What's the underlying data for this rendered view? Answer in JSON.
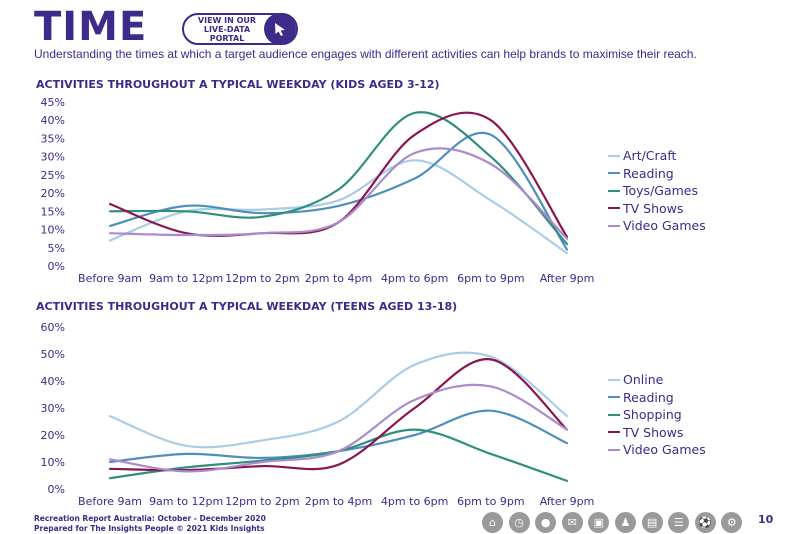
{
  "header": {
    "title": "TIME",
    "portal_button": "VIEW IN OUR LIVE-DATA PORTAL",
    "portal_line1": "VIEW IN OUR",
    "portal_line2": "LIVE-DATA PORTAL",
    "subtitle": "Understanding the times at which a target audience engages with different activities can help brands to maximise their reach."
  },
  "chart_data": [
    {
      "type": "line",
      "title": "ACTIVITIES THROUGHOUT A TYPICAL WEEKDAY (KIDS AGED 3-12)",
      "categories": [
        "Before 9am",
        "9am to 12pm",
        "12pm to 2pm",
        "2pm to 4pm",
        "4pm to 6pm",
        "6pm to 9pm",
        "After 9pm"
      ],
      "y_ticks": [
        "0%",
        "5%",
        "10%",
        "15%",
        "20%",
        "25%",
        "30%",
        "35%",
        "40%",
        "45%"
      ],
      "ylim": [
        0,
        45
      ],
      "grid": false,
      "legend_position": "right",
      "series": [
        {
          "name": "Art/Craft",
          "color": "#a9cde6",
          "values": [
            7,
            15,
            15.5,
            18,
            29,
            18,
            3.5
          ]
        },
        {
          "name": "Reading",
          "color": "#4f8fbd",
          "values": [
            11,
            16.5,
            14.5,
            16.5,
            24,
            36,
            4.5
          ]
        },
        {
          "name": "Toys/Games",
          "color": "#2f8f7c",
          "values": [
            15,
            15,
            13.5,
            21,
            42,
            30,
            6
          ]
        },
        {
          "name": "TV Shows",
          "color": "#8a1551",
          "values": [
            17,
            9,
            9,
            12,
            36,
            40,
            8
          ]
        },
        {
          "name": "Video Games",
          "color": "#a98ccc",
          "values": [
            9,
            8.5,
            9,
            12,
            31,
            28,
            7.5
          ]
        }
      ]
    },
    {
      "type": "line",
      "title": "ACTIVITIES THROUGHOUT A TYPICAL WEEKDAY (TEENS AGED 13-18)",
      "categories": [
        "Before 9am",
        "9am to 12pm",
        "12pm to 2pm",
        "2pm to 4pm",
        "4pm to 6pm",
        "6pm to 9pm",
        "After 9pm"
      ],
      "y_ticks": [
        "0%",
        "10%",
        "20%",
        "30%",
        "40%",
        "50%",
        "60%"
      ],
      "ylim": [
        0,
        60
      ],
      "grid": false,
      "legend_position": "right",
      "series": [
        {
          "name": "Online",
          "color": "#a9cde6",
          "values": [
            27,
            16,
            18,
            25,
            46,
            49,
            27
          ]
        },
        {
          "name": "Reading",
          "color": "#4f8fbd",
          "values": [
            10,
            13,
            11.5,
            14,
            20,
            29,
            17
          ]
        },
        {
          "name": "Shopping",
          "color": "#2f8f7c",
          "values": [
            4,
            8,
            10.5,
            14,
            22,
            13,
            3
          ]
        },
        {
          "name": "TV Shows",
          "color": "#8a1551",
          "values": [
            7.5,
            7,
            8.5,
            9,
            30,
            48,
            22
          ]
        },
        {
          "name": "Video Games",
          "color": "#a98ccc",
          "values": [
            11,
            6.5,
            10,
            14,
            33,
            38,
            22
          ]
        }
      ]
    }
  ],
  "footer": {
    "line1": "Recreation Report Australia: October - December 2020",
    "line2": "Prepared for The Insights People © 2021 Kids Insights",
    "page_number": "10",
    "nav_icons": [
      "home-icon",
      "clock-icon",
      "piggy-bank-icon",
      "chat-icon",
      "basket-icon",
      "person-icon",
      "document-icon",
      "stack-icon",
      "ball-icon",
      "gear-icon"
    ]
  }
}
